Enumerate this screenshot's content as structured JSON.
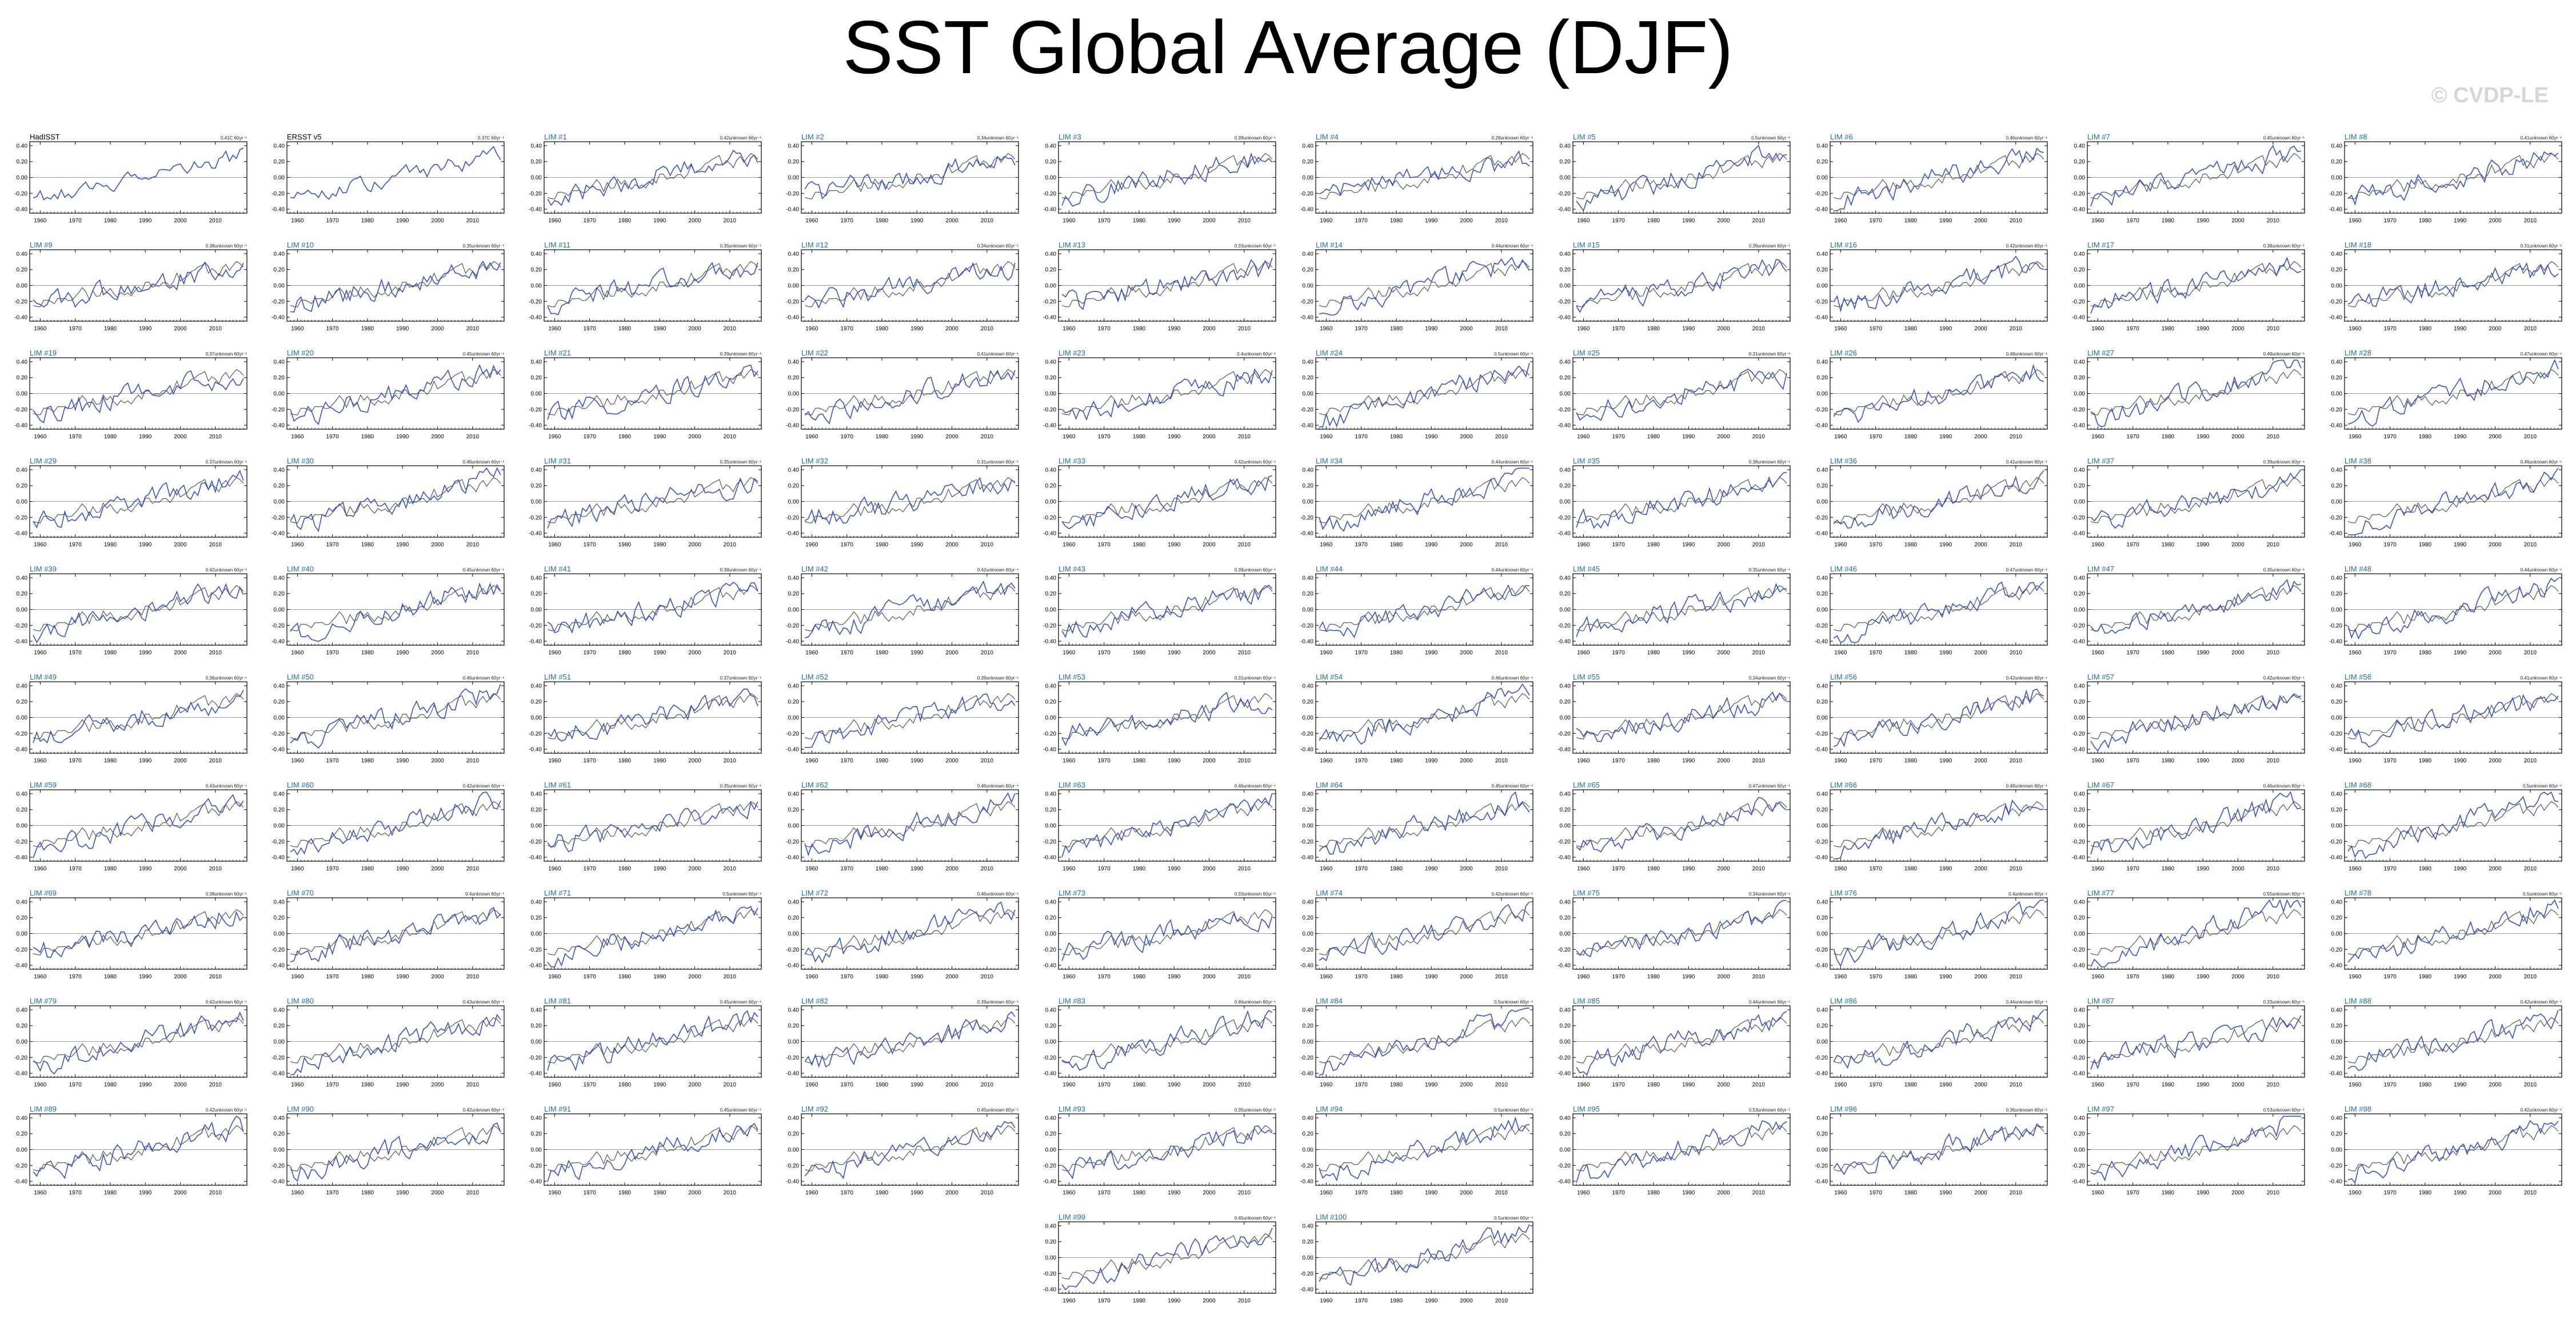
{
  "title": "SST Global Average (DJF)",
  "watermark": "© CVDP-LE",
  "colors": {
    "model": "#3352c8",
    "obs": "#4a4a4a",
    "label_obs": "#000000",
    "label_member": "#1b6fa8",
    "zero": "#9a9a9a"
  },
  "chart_data": {
    "type": "line",
    "xlim": [
      1957,
      2019
    ],
    "ylim": [
      -0.45,
      0.45
    ],
    "xticks": [
      1960,
      1970,
      1980,
      1990,
      2000,
      2010
    ],
    "yticks": [
      -0.4,
      -0.2,
      0.0,
      0.2,
      0.4
    ],
    "ytick_labels": [
      "-0.40",
      "-0.20",
      "0.00",
      "0.20",
      "0.40"
    ],
    "years_start": 1958,
    "years_end": 2018,
    "observations": [
      {
        "name": "HadISST",
        "trend": "0.41C 60yr⁻¹"
      },
      {
        "name": "ERSST v5",
        "trend": "0.37C 60yr⁻¹"
      }
    ],
    "members": [
      {
        "name": "LIM #1",
        "trend": "0.42unknown 60yr⁻¹"
      },
      {
        "name": "LIM #2",
        "trend": "0.34unknown 60yr⁻¹"
      },
      {
        "name": "LIM #3",
        "trend": "0.39unknown 60yr⁻¹"
      },
      {
        "name": "LIM #4",
        "trend": "0.28unknown 60yr⁻¹"
      },
      {
        "name": "LIM #5",
        "trend": "0.5unknown 60yr⁻¹"
      },
      {
        "name": "LIM #6",
        "trend": "0.46unknown 60yr⁻¹"
      },
      {
        "name": "LIM #7",
        "trend": "0.45unknown 60yr⁻¹"
      },
      {
        "name": "LIM #8",
        "trend": "0.41unknown 60yr⁻¹"
      },
      {
        "name": "LIM #9",
        "trend": "0.38unknown 60yr⁻¹"
      },
      {
        "name": "LIM #10",
        "trend": "0.35unknown 60yr⁻¹"
      },
      {
        "name": "LIM #11",
        "trend": "0.35unknown 60yr⁻¹"
      },
      {
        "name": "LIM #12",
        "trend": "0.34unknown 60yr⁻¹"
      },
      {
        "name": "LIM #13",
        "trend": "0.33unknown 60yr⁻¹"
      },
      {
        "name": "LIM #14",
        "trend": "0.44unknown 60yr⁻¹"
      },
      {
        "name": "LIM #15",
        "trend": "0.39unknown 60yr⁻¹"
      },
      {
        "name": "LIM #16",
        "trend": "0.42unknown 60yr⁻¹"
      },
      {
        "name": "LIM #17",
        "trend": "0.38unknown 60yr⁻¹"
      },
      {
        "name": "LIM #18",
        "trend": "0.31unknown 60yr⁻¹"
      },
      {
        "name": "LIM #19",
        "trend": "0.37unknown 60yr⁻¹"
      },
      {
        "name": "LIM #20",
        "trend": "0.45unknown 60yr⁻¹"
      },
      {
        "name": "LIM #21",
        "trend": "0.39unknown 60yr⁻¹"
      },
      {
        "name": "LIM #22",
        "trend": "0.41unknown 60yr⁻¹"
      },
      {
        "name": "LIM #23",
        "trend": "0.4unknown 60yr⁻¹"
      },
      {
        "name": "LIM #24",
        "trend": "0.5unknown 60yr⁻¹"
      },
      {
        "name": "LIM #25",
        "trend": "0.31unknown 60yr⁻¹"
      },
      {
        "name": "LIM #26",
        "trend": "0.48unknown 60yr⁻¹"
      },
      {
        "name": "LIM #27",
        "trend": "0.49unknown 60yr⁻¹"
      },
      {
        "name": "LIM #28",
        "trend": "0.47unknown 60yr⁻¹"
      },
      {
        "name": "LIM #29",
        "trend": "0.37unknown 60yr⁻¹"
      },
      {
        "name": "LIM #30",
        "trend": "0.46unknown 60yr⁻¹"
      },
      {
        "name": "LIM #31",
        "trend": "0.35unknown 60yr⁻¹"
      },
      {
        "name": "LIM #32",
        "trend": "0.31unknown 60yr⁻¹"
      },
      {
        "name": "LIM #33",
        "trend": "0.42unknown 60yr⁻¹"
      },
      {
        "name": "LIM #34",
        "trend": "0.44unknown 60yr⁻¹"
      },
      {
        "name": "LIM #35",
        "trend": "0.38unknown 60yr⁻¹"
      },
      {
        "name": "LIM #36",
        "trend": "0.41unknown 60yr⁻¹"
      },
      {
        "name": "LIM #37",
        "trend": "0.39unknown 60yr⁻¹"
      },
      {
        "name": "LIM #38",
        "trend": "0.46unknown 60yr⁻¹"
      },
      {
        "name": "LIM #39",
        "trend": "0.42unknown 60yr⁻¹"
      },
      {
        "name": "LIM #40",
        "trend": "0.45unknown 60yr⁻¹"
      },
      {
        "name": "LIM #41",
        "trend": "0.38unknown 60yr⁻¹"
      },
      {
        "name": "LIM #42",
        "trend": "0.42unknown 60yr⁻¹"
      },
      {
        "name": "LIM #43",
        "trend": "0.39unknown 60yr⁻¹"
      },
      {
        "name": "LIM #44",
        "trend": "0.44unknown 60yr⁻¹"
      },
      {
        "name": "LIM #45",
        "trend": "0.35unknown 60yr⁻¹"
      },
      {
        "name": "LIM #46",
        "trend": "0.47unknown 60yr⁻¹"
      },
      {
        "name": "LIM #47",
        "trend": "0.35unknown 60yr⁻¹"
      },
      {
        "name": "LIM #48",
        "trend": "0.44unknown 60yr⁻¹"
      },
      {
        "name": "LIM #49",
        "trend": "0.36unknown 60yr⁻¹"
      },
      {
        "name": "LIM #50",
        "trend": "0.46unknown 60yr⁻¹"
      },
      {
        "name": "LIM #51",
        "trend": "0.37unknown 60yr⁻¹"
      },
      {
        "name": "LIM #52",
        "trend": "0.39unknown 60yr⁻¹"
      },
      {
        "name": "LIM #53",
        "trend": "0.31unknown 60yr⁻¹"
      },
      {
        "name": "LIM #54",
        "trend": "0.46unknown 60yr⁻¹"
      },
      {
        "name": "LIM #55",
        "trend": "0.34unknown 60yr⁻¹"
      },
      {
        "name": "LIM #56",
        "trend": "0.42unknown 60yr⁻¹"
      },
      {
        "name": "LIM #57",
        "trend": "0.42unknown 60yr⁻¹"
      },
      {
        "name": "LIM #58",
        "trend": "0.41unknown 60yr⁻¹"
      },
      {
        "name": "LIM #59",
        "trend": "0.43unknown 60yr⁻¹"
      },
      {
        "name": "LIM #60",
        "trend": "0.42unknown 60yr⁻¹"
      },
      {
        "name": "LIM #61",
        "trend": "0.35unknown 60yr⁻¹"
      },
      {
        "name": "LIM #62",
        "trend": "0.46unknown 60yr⁻¹"
      },
      {
        "name": "LIM #63",
        "trend": "0.46unknown 60yr⁻¹"
      },
      {
        "name": "LIM #64",
        "trend": "0.45unknown 60yr⁻¹"
      },
      {
        "name": "LIM #65",
        "trend": "0.47unknown 60yr⁻¹"
      },
      {
        "name": "LIM #66",
        "trend": "0.48unknown 60yr⁻¹"
      },
      {
        "name": "LIM #67",
        "trend": "0.46unknown 60yr⁻¹"
      },
      {
        "name": "LIM #68",
        "trend": "0.5unknown 60yr⁻¹"
      },
      {
        "name": "LIM #69",
        "trend": "0.38unknown 60yr⁻¹"
      },
      {
        "name": "LIM #70",
        "trend": "0.4unknown 60yr⁻¹"
      },
      {
        "name": "LIM #71",
        "trend": "0.5unknown 60yr⁻¹"
      },
      {
        "name": "LIM #72",
        "trend": "0.46unknown 60yr⁻¹"
      },
      {
        "name": "LIM #73",
        "trend": "0.33unknown 60yr⁻¹"
      },
      {
        "name": "LIM #74",
        "trend": "0.42unknown 60yr⁻¹"
      },
      {
        "name": "LIM #75",
        "trend": "0.34unknown 60yr⁻¹"
      },
      {
        "name": "LIM #76",
        "trend": "0.4unknown 60yr⁻¹"
      },
      {
        "name": "LIM #77",
        "trend": "0.55unknown 60yr⁻¹"
      },
      {
        "name": "LIM #78",
        "trend": "0.5unknown 60yr⁻¹"
      },
      {
        "name": "LIM #79",
        "trend": "0.42unknown 60yr⁻¹"
      },
      {
        "name": "LIM #80",
        "trend": "0.43unknown 60yr⁻¹"
      },
      {
        "name": "LIM #81",
        "trend": "0.45unknown 60yr⁻¹"
      },
      {
        "name": "LIM #82",
        "trend": "0.39unknown 60yr⁻¹"
      },
      {
        "name": "LIM #83",
        "trend": "0.46unknown 60yr⁻¹"
      },
      {
        "name": "LIM #84",
        "trend": "0.5unknown 60yr⁻¹"
      },
      {
        "name": "LIM #85",
        "trend": "0.44unknown 60yr⁻¹"
      },
      {
        "name": "LIM #86",
        "trend": "0.44unknown 60yr⁻¹"
      },
      {
        "name": "LIM #87",
        "trend": "0.33unknown 60yr⁻¹"
      },
      {
        "name": "LIM #88",
        "trend": "0.42unknown 60yr⁻¹"
      },
      {
        "name": "LIM #89",
        "trend": "0.42unknown 60yr⁻¹"
      },
      {
        "name": "LIM #90",
        "trend": "0.42unknown 60yr⁻¹"
      },
      {
        "name": "LIM #91",
        "trend": "0.45unknown 60yr⁻¹"
      },
      {
        "name": "LIM #92",
        "trend": "0.45unknown 60yr⁻¹"
      },
      {
        "name": "LIM #93",
        "trend": "0.35unknown 60yr⁻¹"
      },
      {
        "name": "LIM #94",
        "trend": "0.5unknown 60yr⁻¹"
      },
      {
        "name": "LIM #95",
        "trend": "0.53unknown 60yr⁻¹"
      },
      {
        "name": "LIM #96",
        "trend": "0.36unknown 60yr⁻¹"
      },
      {
        "name": "LIM #97",
        "trend": "0.53unknown 60yr⁻¹"
      },
      {
        "name": "LIM #98",
        "trend": "0.42unknown 60yr⁻¹"
      },
      {
        "name": "LIM #99",
        "trend": "0.45unknown 60yr⁻¹"
      },
      {
        "name": "LIM #100",
        "trend": "0.5unknown 60yr⁻¹"
      }
    ]
  }
}
